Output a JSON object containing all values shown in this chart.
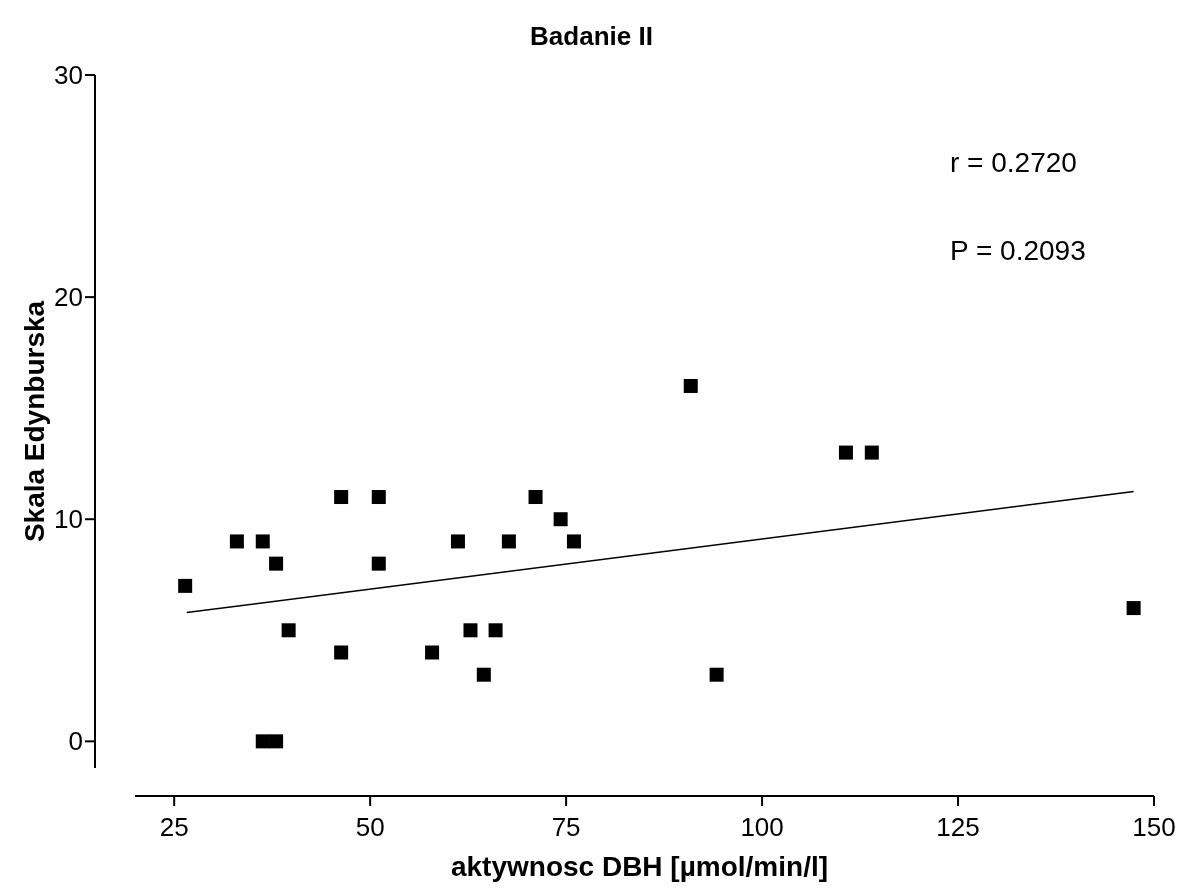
{
  "chart_data": {
    "type": "scatter",
    "title": "Badanie II",
    "xlabel": "aktywnosc DBH [µmol/min/l]",
    "ylabel": "Skala Edynburska",
    "annotations": [
      "r = 0.2720",
      "P = 0.2093"
    ],
    "xlim": [
      20,
      150
    ],
    "xticks": [
      25,
      50,
      75,
      100,
      125,
      150
    ],
    "ylim": [
      -1.2,
      30
    ],
    "yticks": [
      0,
      10,
      20,
      30
    ],
    "marker": "square",
    "grid": false,
    "series": [
      {
        "color": "#000000",
        "x": [
          26.4,
          33.0,
          36.3,
          38.0,
          39.6,
          36.3,
          38.0,
          46.3,
          46.3,
          51.1,
          51.1,
          57.9,
          61.2,
          62.8,
          64.5,
          66.0,
          67.7,
          71.1,
          74.3,
          76.0,
          90.9,
          94.2,
          110.7,
          114.0,
          147.4
        ],
        "values": [
          7,
          9,
          9,
          8,
          5,
          0,
          0,
          11,
          4,
          11,
          8,
          4,
          9,
          5,
          3,
          5,
          9,
          11,
          10,
          9,
          16,
          3,
          13,
          13,
          6
        ]
      },
      {
        "type": "line",
        "color": "#000000",
        "marker": "none",
        "x": [
          26.6,
          147.4
        ],
        "values": [
          5.8,
          11.25
        ]
      }
    ]
  }
}
